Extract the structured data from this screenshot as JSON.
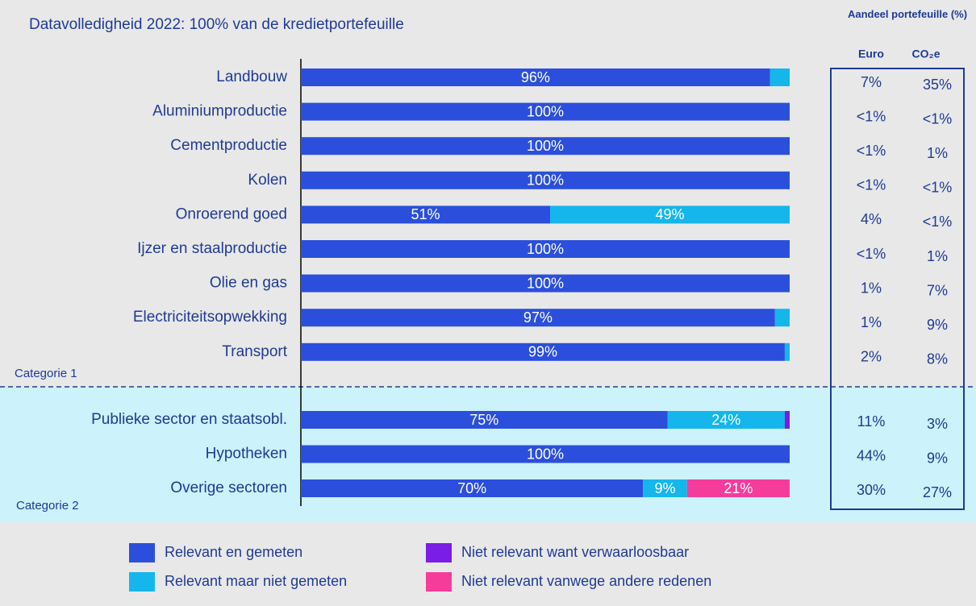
{
  "chart_data": {
    "type": "bar",
    "orientation": "horizontal",
    "stacked": true,
    "title": "Datavolledigheid 2022: 100% van de kredietportefeuille",
    "categories": [
      "Landbouw",
      "Aluminiumproductie",
      "Cementproductie",
      "Kolen",
      "Onroerend goed",
      "Ijzer en staalproductie",
      "Olie en gas",
      "Electriciteitsopwekking",
      "Transport",
      "Publieke sector en staatsobl.",
      "Hypotheken",
      "Overige sectoren"
    ],
    "groups": [
      "Categorie 1",
      "Categorie 2"
    ],
    "xlim": [
      0,
      100
    ],
    "series": [
      {
        "name": "Relevant en gemeten",
        "color": "#2b4fdc",
        "values": [
          96,
          100,
          100,
          100,
          51,
          100,
          100,
          97,
          99,
          75,
          100,
          70
        ],
        "value_labels": [
          "96%",
          "100%",
          "100%",
          "100%",
          "51%",
          "100%",
          "100%",
          "97%",
          "99%",
          "75%",
          "100%",
          "70%"
        ]
      },
      {
        "name": "Relevant maar niet gemeten",
        "color": "#14b6ec",
        "values": [
          4,
          0,
          0,
          0,
          49,
          0,
          0,
          3,
          1,
          24,
          0,
          9
        ],
        "value_labels": [
          null,
          null,
          null,
          null,
          "49%",
          null,
          null,
          null,
          null,
          "24%",
          null,
          "9%"
        ]
      },
      {
        "name": "Niet relevant want verwaarloosbaar",
        "color": "#7a1de6",
        "values": [
          0,
          0,
          0,
          0,
          0,
          0,
          0,
          0,
          0,
          1,
          0,
          0
        ],
        "value_labels": [
          null,
          null,
          null,
          null,
          null,
          null,
          null,
          null,
          null,
          null,
          null,
          null
        ]
      },
      {
        "name": "Niet relevant vanwege andere redenen",
        "color": "#f53c9b",
        "values": [
          0,
          0,
          0,
          0,
          0,
          0,
          0,
          0,
          0,
          0,
          0,
          21
        ],
        "value_labels": [
          null,
          null,
          null,
          null,
          null,
          null,
          null,
          null,
          null,
          null,
          null,
          "21%"
        ]
      }
    ],
    "table": {
      "title": "Aandeel portefeuille (%)",
      "columns": [
        "Euro",
        "CO₂e"
      ],
      "rows": [
        [
          "7%",
          "35%"
        ],
        [
          "<1%",
          "<1%"
        ],
        [
          "<1%",
          "1%"
        ],
        [
          "<1%",
          "<1%"
        ],
        [
          "4%",
          "<1%"
        ],
        [
          "<1%",
          "1%"
        ],
        [
          "1%",
          "7%"
        ],
        [
          "1%",
          "9%"
        ],
        [
          "2%",
          "8%"
        ],
        [
          "11%",
          "3%"
        ],
        [
          "44%",
          "9%"
        ],
        [
          "30%",
          "27%"
        ]
      ]
    }
  }
}
